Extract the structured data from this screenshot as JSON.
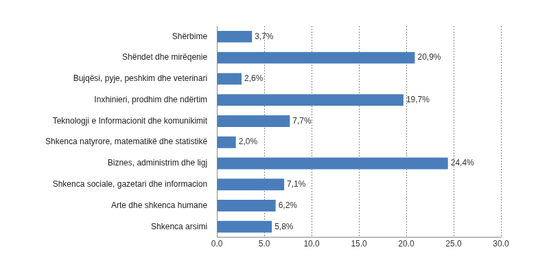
{
  "chart_data": {
    "type": "bar",
    "orientation": "horizontal",
    "categories": [
      "Shërbime",
      "Shëndet dhe mirëqenie",
      "Bujqësi, pyje, peshkim dhe veterinari",
      "Inxhinieri, prodhim dhe ndërtim",
      "Teknologji e Informacionit dhe komunikimit",
      "Shkenca natyrore, matematikë dhe statistikë",
      "Biznes, administrim dhe ligj",
      "Shkenca sociale, gazetari dhe informacion",
      "Arte dhe shkenca humane",
      "Shkenca arsimi"
    ],
    "values": [
      3.7,
      20.9,
      2.6,
      19.7,
      7.7,
      2.0,
      24.4,
      7.1,
      6.2,
      5.8
    ],
    "value_labels": [
      "3,7%",
      "20,9%",
      "2,6%",
      "19,7%",
      "7,7%",
      "2,0%",
      "24,4%",
      "7,1%",
      "6,2%",
      "5,8%"
    ],
    "data_labels": true,
    "color": "#4a7ebb",
    "xlim": [
      0,
      30
    ],
    "xticks": [
      {
        "value": 0,
        "label": "0.0"
      },
      {
        "value": 5,
        "label": "5.0"
      },
      {
        "value": 10,
        "label": "10.0"
      },
      {
        "value": 15,
        "label": "15.0"
      },
      {
        "value": 20,
        "label": "20.0"
      },
      {
        "value": 25,
        "label": "25.0"
      },
      {
        "value": 30,
        "label": "30.0"
      }
    ],
    "grid": true
  }
}
